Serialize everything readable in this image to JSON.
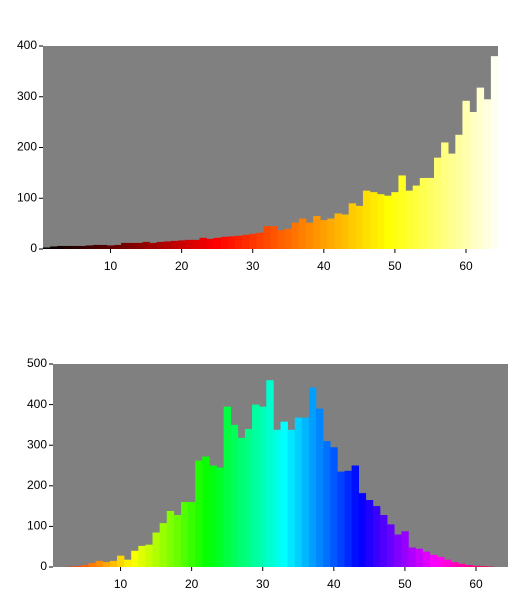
{
  "chart_data": [
    {
      "type": "bar",
      "colormap": "hot",
      "background": "#808080",
      "x": [
        1,
        2,
        3,
        4,
        5,
        6,
        7,
        8,
        9,
        10,
        11,
        12,
        13,
        14,
        15,
        16,
        17,
        18,
        19,
        20,
        21,
        22,
        23,
        24,
        25,
        26,
        27,
        28,
        29,
        30,
        31,
        32,
        33,
        34,
        35,
        36,
        37,
        38,
        39,
        40,
        41,
        42,
        43,
        44,
        45,
        46,
        47,
        48,
        49,
        50,
        51,
        52,
        53,
        54,
        55,
        56,
        57,
        58,
        59,
        60,
        61,
        62,
        63,
        64
      ],
      "values": [
        3,
        5,
        6,
        6,
        6,
        6,
        7,
        8,
        8,
        7,
        8,
        12,
        12,
        12,
        14,
        12,
        14,
        15,
        16,
        17,
        18,
        18,
        22,
        20,
        22,
        24,
        25,
        26,
        28,
        30,
        32,
        45,
        45,
        37,
        40,
        52,
        60,
        52,
        65,
        57,
        60,
        70,
        68,
        90,
        85,
        115,
        112,
        108,
        105,
        112,
        145,
        115,
        125,
        140,
        140,
        180,
        210,
        188,
        225,
        292,
        270,
        318,
        295,
        380
      ],
      "xlim": [
        0.5,
        64.5
      ],
      "xticks": [
        10,
        20,
        30,
        40,
        50,
        60
      ],
      "ylim": [
        0,
        400
      ],
      "yticks": [
        0,
        100,
        200,
        300,
        400
      ]
    },
    {
      "type": "bar",
      "colormap": "hsv",
      "background": "#808080",
      "x": [
        1,
        2,
        3,
        4,
        5,
        6,
        7,
        8,
        9,
        10,
        11,
        12,
        13,
        14,
        15,
        16,
        17,
        18,
        19,
        20,
        21,
        22,
        23,
        24,
        25,
        26,
        27,
        28,
        29,
        30,
        31,
        32,
        33,
        34,
        35,
        36,
        37,
        38,
        39,
        40,
        41,
        42,
        43,
        44,
        45,
        46,
        47,
        48,
        49,
        50,
        51,
        52,
        53,
        54,
        55,
        56,
        57,
        58,
        59,
        60,
        61,
        62,
        63,
        64
      ],
      "values": [
        0,
        0,
        1,
        2,
        5,
        10,
        15,
        12,
        15,
        28,
        18,
        40,
        52,
        55,
        85,
        108,
        138,
        128,
        160,
        160,
        262,
        272,
        250,
        245,
        395,
        350,
        318,
        340,
        400,
        395,
        460,
        338,
        358,
        338,
        368,
        368,
        442,
        390,
        310,
        295,
        235,
        237,
        250,
        182,
        165,
        150,
        128,
        105,
        80,
        88,
        48,
        45,
        38,
        30,
        25,
        18,
        12,
        8,
        5,
        3,
        2,
        1,
        0,
        0
      ],
      "xlim": [
        0.5,
        64.5
      ],
      "xticks": [
        10,
        20,
        30,
        40,
        50,
        60
      ],
      "ylim": [
        0,
        500
      ],
      "yticks": [
        0,
        100,
        200,
        300,
        400,
        500
      ]
    }
  ]
}
